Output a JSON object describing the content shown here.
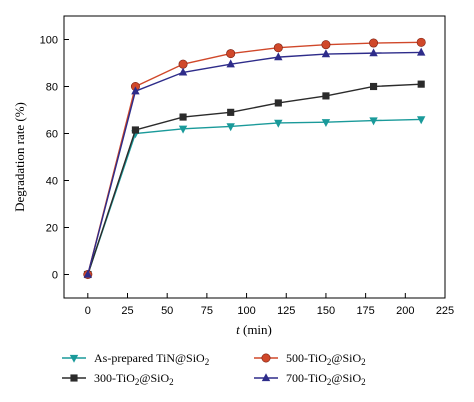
{
  "chart_data": {
    "type": "line",
    "xlabel_var": "t",
    "xlabel_unit": " (min)",
    "ylabel": "Degradation rate (%)",
    "xlim": [
      -15,
      225
    ],
    "ylim": [
      -10,
      110
    ],
    "xticks": [
      0,
      25,
      50,
      75,
      100,
      125,
      150,
      175,
      200,
      225
    ],
    "yticks": [
      0,
      20,
      40,
      60,
      80,
      100
    ],
    "x": [
      0,
      30,
      60,
      90,
      120,
      150,
      180,
      210
    ],
    "series": [
      {
        "name_main": "As-prepared TiN@SiO",
        "name_sub": "2",
        "name_tail": "",
        "color": "#1a9a9a",
        "marker": "triangle-down",
        "values": [
          0,
          60,
          62,
          63,
          64.5,
          64.8,
          65.5,
          66
        ]
      },
      {
        "name_main": "300-TiO",
        "name_sub": "2",
        "name_tail": "@SiO",
        "name_sub2": "2",
        "color": "#2b2b2b",
        "marker": "square",
        "values": [
          0,
          61.5,
          67,
          69,
          73,
          76,
          80,
          81
        ]
      },
      {
        "name_main": "500-TiO",
        "name_sub": "2",
        "name_tail": "@SiO",
        "name_sub2": "2",
        "color": "#d0482a",
        "marker": "circle",
        "values": [
          0,
          80,
          89.5,
          94,
          96.5,
          97.8,
          98.5,
          98.8
        ]
      },
      {
        "name_main": "700-TiO",
        "name_sub": "2",
        "name_tail": "@SiO",
        "name_sub2": "2",
        "color": "#2e2c8a",
        "marker": "triangle-up",
        "values": [
          0,
          78,
          86,
          89.5,
          92.5,
          93.8,
          94.2,
          94.5
        ]
      }
    ],
    "legend_order": [
      0,
      2,
      1,
      3
    ],
    "legend_placement": "bottom"
  }
}
